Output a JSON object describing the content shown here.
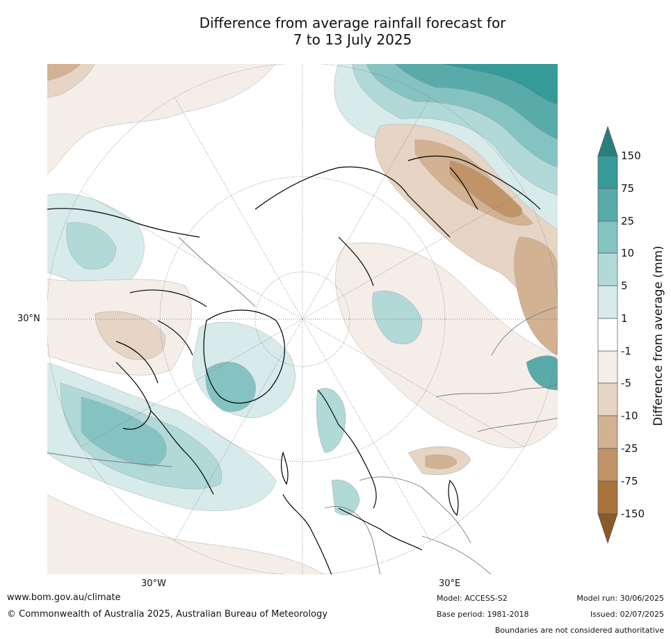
{
  "title": {
    "line1": "Difference from average rainfall forecast for",
    "line2": "7 to 13 July 2025"
  },
  "map": {
    "projection": "north polar stereographic",
    "coord_labels": {
      "lat_30n": "30°N",
      "lon_30w": "30°W",
      "lon_30e": "30°E"
    },
    "features": [
      "coastlines",
      "country-boundaries",
      "graticule"
    ]
  },
  "colorbar": {
    "label": "Difference from average (mm)",
    "tick_labels": [
      "150",
      "75",
      "25",
      "10",
      "5",
      "1",
      "-1",
      "-5",
      "-10",
      "-25",
      "-75",
      "-150"
    ],
    "bins": [
      {
        "range": "> 150",
        "color": "#2a7f7c"
      },
      {
        "range": "75 to 150",
        "color": "#369b98"
      },
      {
        "range": "25 to 75",
        "color": "#59abaa"
      },
      {
        "range": "10 to 25",
        "color": "#85c3c2"
      },
      {
        "range": "5 to 10",
        "color": "#b1d9d8"
      },
      {
        "range": "1 to 5",
        "color": "#d7ebea"
      },
      {
        "range": "-1 to 1",
        "color": "#ffffff"
      },
      {
        "range": "-5 to -1",
        "color": "#f5ede8"
      },
      {
        "range": "-10 to -5",
        "color": "#e6d4c5"
      },
      {
        "range": "-25 to -10",
        "color": "#d2b292"
      },
      {
        "range": "-75 to -25",
        "color": "#c09468"
      },
      {
        "range": "-150 to -75",
        "color": "#a8733d"
      },
      {
        "range": "< -150",
        "color": "#8b5a2b"
      }
    ]
  },
  "footer": {
    "website": "www.bom.gov.au/climate",
    "copyright": "© Commonwealth of Australia 2025, Australian Bureau of Meteorology",
    "model": "Model: ACCESS-S2",
    "base_period": "Base period: 1981-2018",
    "model_run": "Model run: 30/06/2025",
    "issued": "Issued: 02/07/2025",
    "boundaries_note": "Boundaries are not considered authoritative"
  }
}
